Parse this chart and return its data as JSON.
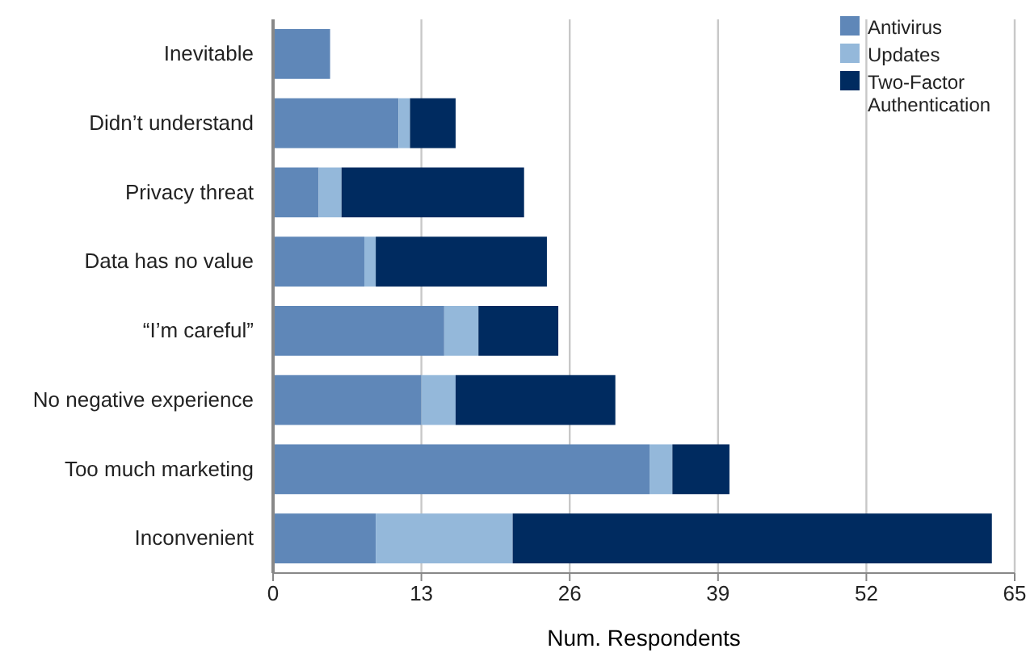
{
  "chart_data": {
    "type": "bar",
    "orientation": "horizontal",
    "stacked": true,
    "categories": [
      "Inevitable",
      "Didn’t understand",
      "Privacy threat",
      "Data has no value",
      "“I’m careful”",
      "No negative experience",
      "Too much marketing",
      "Inconvenient"
    ],
    "series": [
      {
        "name": "Antivirus",
        "color": "#5f87b8",
        "values": [
          5,
          11,
          4,
          8,
          15,
          13,
          33,
          9
        ]
      },
      {
        "name": "Updates",
        "color": "#94b8da",
        "values": [
          0,
          1,
          2,
          1,
          3,
          3,
          2,
          12
        ]
      },
      {
        "name": "Two-Factor Authentication",
        "color": "#002b60",
        "values": [
          0,
          4,
          16,
          15,
          7,
          14,
          5,
          42
        ]
      }
    ],
    "xlabel": "Num. Respondents",
    "xlim": [
      0,
      65
    ],
    "xticks": [
      0,
      13,
      26,
      39,
      52,
      65
    ],
    "grid": "x",
    "legend": "top right"
  }
}
